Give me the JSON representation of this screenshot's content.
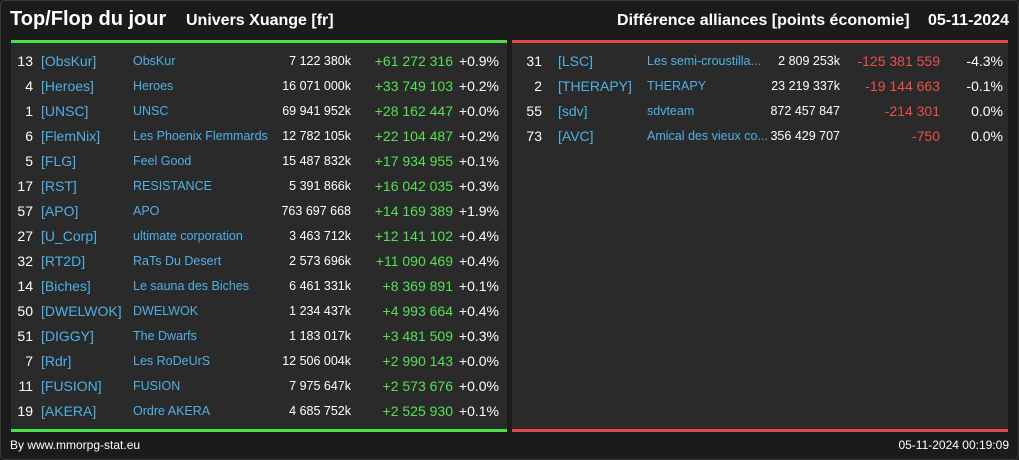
{
  "header": {
    "title": "Top/Flop du jour",
    "universe": "Univers Xuange [fr]",
    "subtitle": "Différence alliances [points économie]",
    "date": "05-11-2024"
  },
  "colors": {
    "positive": "#55e055",
    "negative": "#e85050",
    "link": "#4fb0e8"
  },
  "top": [
    {
      "rank": "13",
      "tag": "[ObsKur]",
      "name": "ObsKur",
      "points": "7 122 380k",
      "diff": "+61 272 316",
      "pct": "+0.9%"
    },
    {
      "rank": "4",
      "tag": "[Heroes]",
      "name": "Heroes",
      "points": "16 071 000k",
      "diff": "+33 749 103",
      "pct": "+0.2%"
    },
    {
      "rank": "1",
      "tag": "[UNSC]",
      "name": "UNSC",
      "points": "69 941 952k",
      "diff": "+28 162 447",
      "pct": "+0.0%"
    },
    {
      "rank": "6",
      "tag": "[FlemNix]",
      "name": "Les Phoenix Flemmards",
      "points": "12 782 105k",
      "diff": "+22 104 487",
      "pct": "+0.2%"
    },
    {
      "rank": "5",
      "tag": "[FLG]",
      "name": "Feel Good",
      "points": "15 487 832k",
      "diff": "+17 934 955",
      "pct": "+0.1%"
    },
    {
      "rank": "17",
      "tag": "[RST]",
      "name": "RESISTANCE",
      "points": "5 391 866k",
      "diff": "+16 042 035",
      "pct": "+0.3%"
    },
    {
      "rank": "57",
      "tag": "[APO]",
      "name": "APO",
      "points": "763 697 668",
      "diff": "+14 169 389",
      "pct": "+1.9%"
    },
    {
      "rank": "27",
      "tag": "[U_Corp]",
      "name": "ultimate corporation",
      "points": "3 463 712k",
      "diff": "+12 141 102",
      "pct": "+0.4%"
    },
    {
      "rank": "32",
      "tag": "[RT2D]",
      "name": "RaTs Du Desert",
      "points": "2 573 696k",
      "diff": "+11 090 469",
      "pct": "+0.4%"
    },
    {
      "rank": "14",
      "tag": "[Biches]",
      "name": "Le sauna des Biches",
      "points": "6 461 331k",
      "diff": "+8 369 891",
      "pct": "+0.1%"
    },
    {
      "rank": "50",
      "tag": "[DWELWOK]",
      "name": "DWELWOK",
      "points": "1 234 437k",
      "diff": "+4 993 664",
      "pct": "+0.4%"
    },
    {
      "rank": "51",
      "tag": "[DIGGY]",
      "name": "The Dwarfs",
      "points": "1 183 017k",
      "diff": "+3 481 509",
      "pct": "+0.3%"
    },
    {
      "rank": "7",
      "tag": "[Rdr]",
      "name": "Les RoDeUrS",
      "points": "12 506 004k",
      "diff": "+2 990 143",
      "pct": "+0.0%"
    },
    {
      "rank": "11",
      "tag": "[FUSION]",
      "name": "FUSION",
      "points": "7 975 647k",
      "diff": "+2 573 676",
      "pct": "+0.0%"
    },
    {
      "rank": "19",
      "tag": "[AKERA]",
      "name": "Ordre AKERA",
      "points": "4 685 752k",
      "diff": "+2 525 930",
      "pct": "+0.1%"
    }
  ],
  "flop": [
    {
      "rank": "31",
      "tag": "[LSC]",
      "name": "Les semi-croustilla...",
      "points": "2 809 253k",
      "diff": "-125 381 559",
      "pct": "-4.3%"
    },
    {
      "rank": "2",
      "tag": "[THERAPY]",
      "name": "THERAPY",
      "points": "23 219 337k",
      "diff": "-19 144 663",
      "pct": "-0.1%"
    },
    {
      "rank": "55",
      "tag": "[sdv]",
      "name": "sdvteam",
      "points": "872 457 847",
      "diff": "-214 301",
      "pct": "0.0%"
    },
    {
      "rank": "73",
      "tag": "[AVC]",
      "name": "Amical des vieux co...",
      "points": "356 429 707",
      "diff": "-750",
      "pct": "0.0%"
    }
  ],
  "footer": {
    "source": "By www.mmorpg-stat.eu",
    "timestamp": "05-11-2024 00:19:09"
  }
}
